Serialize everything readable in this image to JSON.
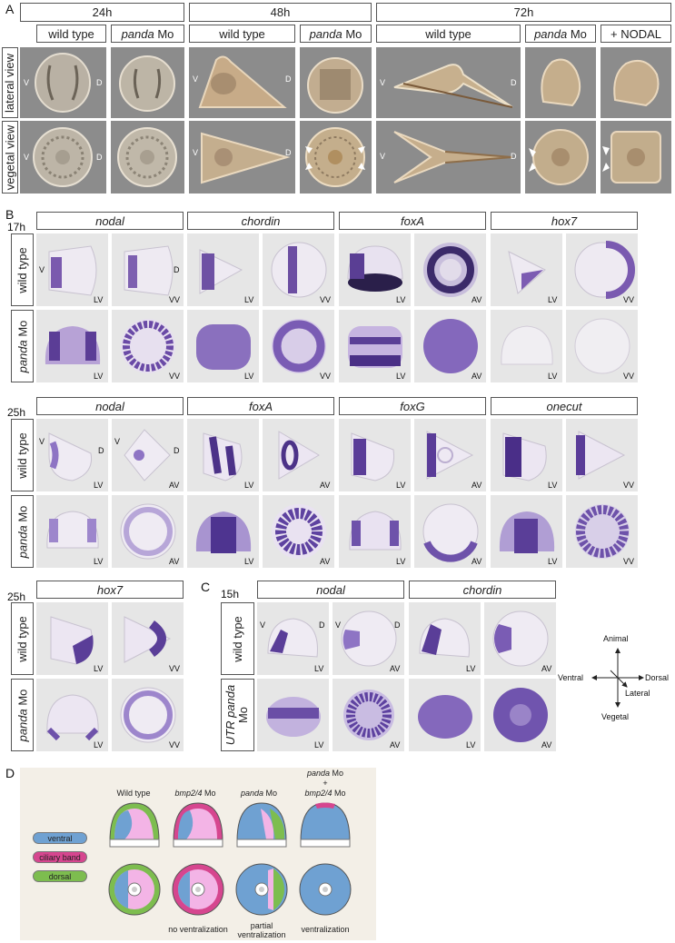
{
  "panelA": {
    "letter": "A",
    "times": [
      "24h",
      "48h",
      "72h"
    ],
    "conditions": [
      "wild type",
      "panda Mo",
      "wild type",
      "panda Mo",
      "wild type",
      "panda Mo",
      "+ NODAL"
    ],
    "rows": [
      "lateral view",
      "vegetal view"
    ],
    "V": "V",
    "D": "D"
  },
  "panelB": {
    "letter": "B",
    "t17": "17h",
    "genes17": [
      "nodal",
      "chordin",
      "foxA",
      "hox7"
    ],
    "t25": "25h",
    "genes25": [
      "nodal",
      "foxA",
      "foxG",
      "onecut"
    ],
    "t25b": "25h",
    "gene25b": "hox7",
    "rows": [
      "wild type",
      "panda Mo"
    ],
    "views17": [
      "LV",
      "VV",
      "LV",
      "VV",
      "LV",
      "AV",
      "LV",
      "VV"
    ],
    "views25": [
      "LV",
      "AV",
      "LV",
      "AV",
      "LV",
      "AV",
      "LV",
      "VV"
    ],
    "views25b": [
      "LV",
      "VV"
    ],
    "V": "V",
    "D": "D"
  },
  "panelC": {
    "letter": "C",
    "time": "15h",
    "genes": [
      "nodal",
      "chordin"
    ],
    "rows": [
      "wild type",
      "UTR panda Mo"
    ],
    "views": [
      "LV",
      "AV",
      "LV",
      "AV"
    ],
    "V": "V",
    "D": "D"
  },
  "axes": {
    "animal": "Animal",
    "vegetal": "Vegetal",
    "ventral": "Ventral",
    "dorsal": "Dorsal",
    "lateral": "Lateral"
  },
  "panelD": {
    "letter": "D",
    "legend": [
      "ventral",
      "ciliary band",
      "dorsal"
    ],
    "columns": [
      "Wild type",
      "bmp2/4 Mo",
      "panda Mo",
      "panda Mo + bmp2/4 Mo"
    ],
    "captions": [
      "",
      "no ventralization",
      "partial ventralization",
      "ventralization"
    ],
    "colors": {
      "ventral": "#6fa1d2",
      "ciliary": "#d6468f",
      "dorsal": "#7dbd4f",
      "pink": "#f3b4e6",
      "bg": "#f3efe7"
    }
  }
}
